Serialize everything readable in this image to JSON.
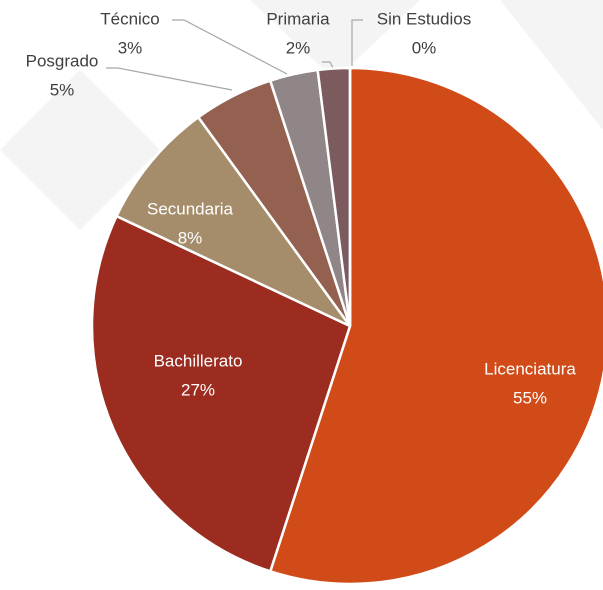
{
  "chart_data": {
    "type": "pie",
    "categories": [
      "Licenciatura",
      "Bachillerato",
      "Secundaria",
      "Posgrado",
      "Técnico",
      "Primaria",
      "Sin Estudios"
    ],
    "values": [
      55,
      27,
      8,
      5,
      3,
      2,
      0
    ],
    "value_labels": [
      "55%",
      "27%",
      "8%",
      "5%",
      "3%",
      "2%",
      "0%"
    ],
    "colors": [
      "#d14b19",
      "#9b2c1f",
      "#a58d6b",
      "#946150",
      "#908687",
      "#7b5b5d",
      "#a0a0a0"
    ]
  }
}
